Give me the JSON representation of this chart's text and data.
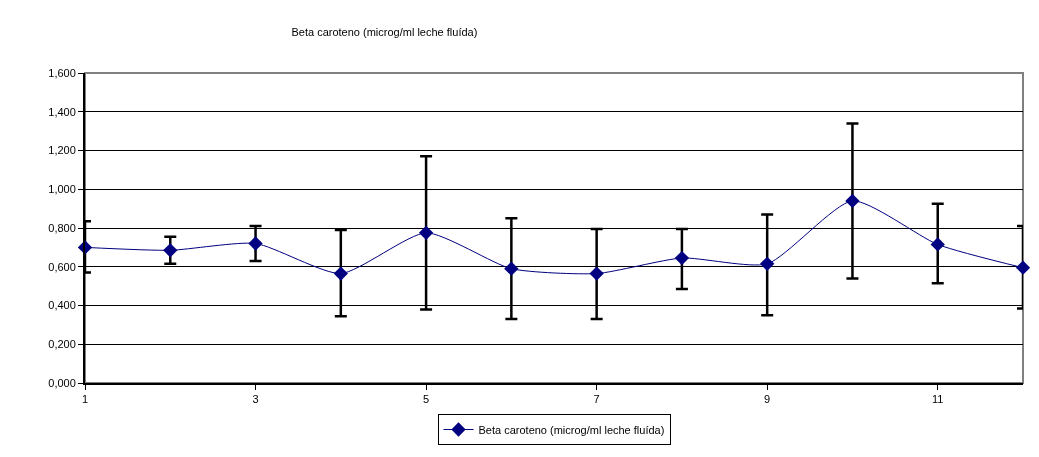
{
  "chart_data": {
    "type": "line",
    "title": "Beta caroteno (microg/ml leche fluída)",
    "x": [
      1,
      2,
      3,
      4,
      5,
      6,
      7,
      8,
      9,
      10,
      11,
      12
    ],
    "series": [
      {
        "name": "Beta caroteno (microg/ml leche fluída)",
        "color": "#000080",
        "values": [
          0.7,
          0.685,
          0.72,
          0.565,
          0.775,
          0.59,
          0.565,
          0.645,
          0.615,
          0.94,
          0.715,
          0.595
        ],
        "errors": [
          [
            0.57,
            0.835
          ],
          [
            0.615,
            0.755
          ],
          [
            0.63,
            0.81
          ],
          [
            0.345,
            0.79
          ],
          [
            0.38,
            1.17
          ],
          [
            0.33,
            0.85
          ],
          [
            0.33,
            0.795
          ],
          [
            0.485,
            0.795
          ],
          [
            0.35,
            0.87
          ],
          [
            0.54,
            1.34
          ],
          [
            0.515,
            0.925
          ],
          [
            0.385,
            0.81
          ]
        ]
      }
    ],
    "xlim": [
      1,
      12
    ],
    "xticks": [
      1,
      3,
      5,
      7,
      9,
      11
    ],
    "ylim": [
      0,
      1.6
    ],
    "yticks": [
      {
        "value": 0,
        "label": "0,000"
      },
      {
        "value": 0.2,
        "label": "0,200"
      },
      {
        "value": 0.4,
        "label": "0,400"
      },
      {
        "value": 0.6,
        "label": "0,600"
      },
      {
        "value": 0.8,
        "label": "0,800"
      },
      {
        "value": 1.0,
        "label": "1,000"
      },
      {
        "value": 1.2,
        "label": "1,200"
      },
      {
        "value": 1.4,
        "label": "1,400"
      },
      {
        "value": 1.6,
        "label": "1,600"
      }
    ],
    "grid": "y",
    "legend": "bottom",
    "marker": "diamond",
    "line_style": "solid"
  }
}
